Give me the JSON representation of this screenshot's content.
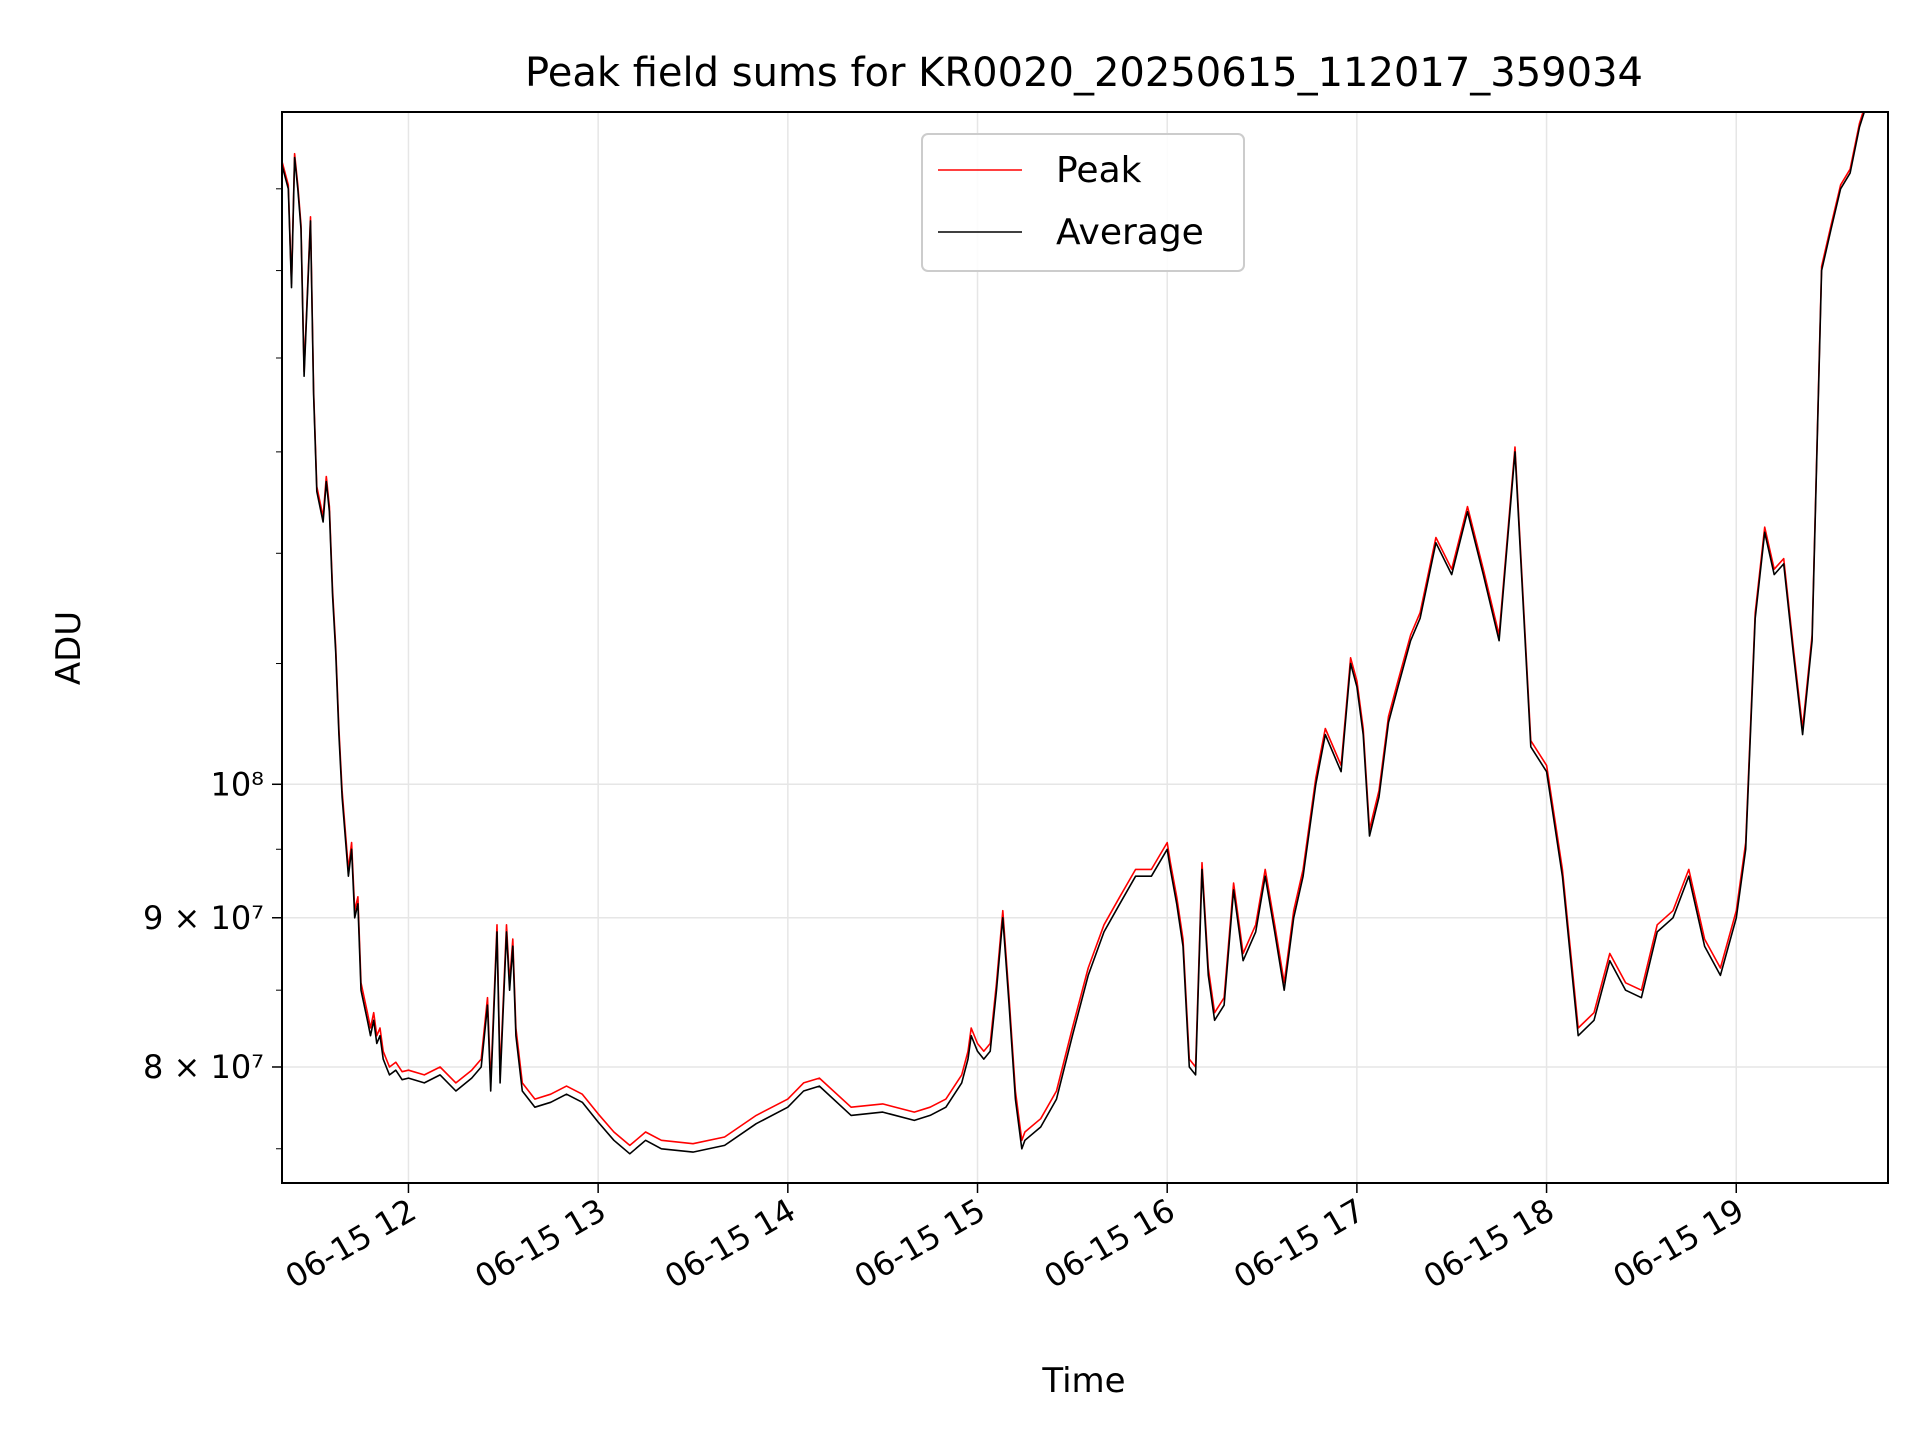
{
  "chart_data": {
    "type": "line",
    "title": "Peak field sums for KR0020_20250615_112017_359034",
    "xlabel": "Time",
    "ylabel": "ADU",
    "y_scale": "log",
    "grid": true,
    "legend_position": "top-center",
    "xlim": [
      "2025-06-15 11:20",
      "2025-06-15 19:48"
    ],
    "ylim": [
      73000000,
      170000000
    ],
    "x_ticks": [
      {
        "value": "2025-06-15 12:00",
        "label": "06-15 12"
      },
      {
        "value": "2025-06-15 13:00",
        "label": "06-15 13"
      },
      {
        "value": "2025-06-15 14:00",
        "label": "06-15 14"
      },
      {
        "value": "2025-06-15 15:00",
        "label": "06-15 15"
      },
      {
        "value": "2025-06-15 16:00",
        "label": "06-15 16"
      },
      {
        "value": "2025-06-15 17:00",
        "label": "06-15 17"
      },
      {
        "value": "2025-06-15 18:00",
        "label": "06-15 18"
      },
      {
        "value": "2025-06-15 19:00",
        "label": "06-15 19"
      }
    ],
    "y_ticks": [
      {
        "value": 80000000,
        "label": "8 × 10⁷"
      },
      {
        "value": 90000000,
        "label": "9 × 10⁷"
      },
      {
        "value": 100000000,
        "label": "10⁸"
      }
    ],
    "series": [
      {
        "name": "Peak",
        "color": "#ff0000"
      },
      {
        "name": "Average",
        "color": "#000000"
      }
    ],
    "x": [
      "2025-06-15 11:20",
      "2025-06-15 11:22",
      "2025-06-15 11:23",
      "2025-06-15 11:24",
      "2025-06-15 11:25",
      "2025-06-15 11:26",
      "2025-06-15 11:27",
      "2025-06-15 11:29",
      "2025-06-15 11:30",
      "2025-06-15 11:31",
      "2025-06-15 11:33",
      "2025-06-15 11:34",
      "2025-06-15 11:35",
      "2025-06-15 11:36",
      "2025-06-15 11:37",
      "2025-06-15 11:38",
      "2025-06-15 11:39",
      "2025-06-15 11:40",
      "2025-06-15 11:41",
      "2025-06-15 11:42",
      "2025-06-15 11:43",
      "2025-06-15 11:44",
      "2025-06-15 11:45",
      "2025-06-15 11:47",
      "2025-06-15 11:48",
      "2025-06-15 11:49",
      "2025-06-15 11:50",
      "2025-06-15 11:51",
      "2025-06-15 11:52",
      "2025-06-15 11:53",
      "2025-06-15 11:54",
      "2025-06-15 11:56",
      "2025-06-15 11:58",
      "2025-06-15 12:00",
      "2025-06-15 12:05",
      "2025-06-15 12:10",
      "2025-06-15 12:15",
      "2025-06-15 12:20",
      "2025-06-15 12:23",
      "2025-06-15 12:25",
      "2025-06-15 12:26",
      "2025-06-15 12:28",
      "2025-06-15 12:29",
      "2025-06-15 12:31",
      "2025-06-15 12:32",
      "2025-06-15 12:33",
      "2025-06-15 12:34",
      "2025-06-15 12:36",
      "2025-06-15 12:38",
      "2025-06-15 12:40",
      "2025-06-15 12:45",
      "2025-06-15 12:50",
      "2025-06-15 12:55",
      "2025-06-15 13:00",
      "2025-06-15 13:05",
      "2025-06-15 13:10",
      "2025-06-15 13:15",
      "2025-06-15 13:20",
      "2025-06-15 13:30",
      "2025-06-15 13:40",
      "2025-06-15 13:50",
      "2025-06-15 14:00",
      "2025-06-15 14:05",
      "2025-06-15 14:10",
      "2025-06-15 14:20",
      "2025-06-15 14:30",
      "2025-06-15 14:40",
      "2025-06-15 14:45",
      "2025-06-15 14:50",
      "2025-06-15 14:55",
      "2025-06-15 14:57",
      "2025-06-15 14:58",
      "2025-06-15 15:00",
      "2025-06-15 15:02",
      "2025-06-15 15:04",
      "2025-06-15 15:06",
      "2025-06-15 15:08",
      "2025-06-15 15:10",
      "2025-06-15 15:12",
      "2025-06-15 15:14",
      "2025-06-15 15:15",
      "2025-06-15 15:20",
      "2025-06-15 15:25",
      "2025-06-15 15:30",
      "2025-06-15 15:35",
      "2025-06-15 15:40",
      "2025-06-15 15:45",
      "2025-06-15 15:50",
      "2025-06-15 15:55",
      "2025-06-15 16:00",
      "2025-06-15 16:01",
      "2025-06-15 16:03",
      "2025-06-15 16:05",
      "2025-06-15 16:07",
      "2025-06-15 16:09",
      "2025-06-15 16:11",
      "2025-06-15 16:13",
      "2025-06-15 16:15",
      "2025-06-15 16:18",
      "2025-06-15 16:21",
      "2025-06-15 16:24",
      "2025-06-15 16:28",
      "2025-06-15 16:31",
      "2025-06-15 16:34",
      "2025-06-15 16:37",
      "2025-06-15 16:40",
      "2025-06-15 16:43",
      "2025-06-15 16:47",
      "2025-06-15 16:50",
      "2025-06-15 16:55",
      "2025-06-15 16:58",
      "2025-06-15 17:00",
      "2025-06-15 17:02",
      "2025-06-15 17:04",
      "2025-06-15 17:07",
      "2025-06-15 17:10",
      "2025-06-15 17:13",
      "2025-06-15 17:17",
      "2025-06-15 17:20",
      "2025-06-15 17:25",
      "2025-06-15 17:30",
      "2025-06-15 17:35",
      "2025-06-15 17:40",
      "2025-06-15 17:45",
      "2025-06-15 17:50",
      "2025-06-15 17:55",
      "2025-06-15 18:00",
      "2025-06-15 18:05",
      "2025-06-15 18:10",
      "2025-06-15 18:15",
      "2025-06-15 18:20",
      "2025-06-15 18:25",
      "2025-06-15 18:30",
      "2025-06-15 18:35",
      "2025-06-15 18:40",
      "2025-06-15 18:45",
      "2025-06-15 18:50",
      "2025-06-15 18:55",
      "2025-06-15 19:00",
      "2025-06-15 19:03",
      "2025-06-15 19:06",
      "2025-06-15 19:09",
      "2025-06-15 19:12",
      "2025-06-15 19:15",
      "2025-06-15 19:18",
      "2025-06-15 19:21",
      "2025-06-15 19:24",
      "2025-06-15 19:27",
      "2025-06-15 19:30",
      "2025-06-15 19:33",
      "2025-06-15 19:36",
      "2025-06-15 19:39",
      "2025-06-15 19:42",
      "2025-06-15 19:45",
      "2025-06-15 19:48"
    ],
    "average": [
      163000000,
      160000000,
      148000000,
      164000000,
      160000000,
      155000000,
      138000000,
      156000000,
      136000000,
      126000000,
      123000000,
      127000000,
      124000000,
      116000000,
      111000000,
      104000000,
      99000000,
      96000000,
      93000000,
      95000000,
      90000000,
      91000000,
      85000000,
      83000000,
      82000000,
      83000000,
      81500000,
      82000000,
      80500000,
      80000000,
      79500000,
      79800000,
      79200000,
      79300000,
      79000000,
      79500000,
      78500000,
      79300000,
      80000000,
      84000000,
      78500000,
      89000000,
      79000000,
      89000000,
      85000000,
      88000000,
      82000000,
      78500000,
      78000000,
      77500000,
      77800000,
      78300000,
      77800000,
      76600000,
      75500000,
      74700000,
      75500000,
      75000000,
      74800000,
      75200000,
      76500000,
      77500000,
      78500000,
      78800000,
      77000000,
      77200000,
      76700000,
      77000000,
      77500000,
      79000000,
      80500000,
      82000000,
      81000000,
      80500000,
      81000000,
      85000000,
      90000000,
      84000000,
      78000000,
      75000000,
      75500000,
      76300000,
      78000000,
      82000000,
      86000000,
      89000000,
      91000000,
      93000000,
      93000000,
      95000000,
      93500000,
      91000000,
      88000000,
      80000000,
      79500000,
      93500000,
      86000000,
      83000000,
      84000000,
      92000000,
      87000000,
      89000000,
      93000000,
      89000000,
      85000000,
      90000000,
      93000000,
      100000000,
      104000000,
      101000000,
      110000000,
      108000000,
      104000000,
      96000000,
      99000000,
      105000000,
      108000000,
      112000000,
      114000000,
      121000000,
      118000000,
      124000000,
      118000000,
      112000000,
      130000000,
      103000000,
      101000000,
      93000000,
      82000000,
      83000000,
      87000000,
      85000000,
      84500000,
      89000000,
      90000000,
      93000000,
      88000000,
      86000000,
      90000000,
      95000000,
      114000000,
      122000000,
      118000000,
      119000000,
      111000000,
      104000000,
      112000000,
      150000000,
      155000000,
      160000000,
      162000000,
      168000000,
      172000000
    ],
    "peak": [
      163500000,
      160500000,
      148500000,
      164500000,
      160500000,
      155500000,
      138500000,
      156500000,
      136500000,
      126500000,
      123500000,
      127500000,
      124500000,
      116500000,
      111500000,
      104500000,
      99500000,
      96500000,
      93500000,
      95500000,
      90500000,
      91500000,
      85500000,
      83500000,
      82500000,
      83500000,
      82000000,
      82500000,
      81000000,
      80500000,
      80000000,
      80300000,
      79700000,
      79800000,
      79500000,
      80000000,
      79000000,
      79800000,
      80500000,
      84500000,
      79000000,
      89500000,
      79500000,
      89500000,
      85500000,
      88500000,
      82500000,
      79000000,
      78500000,
      78000000,
      78300000,
      78800000,
      78300000,
      77100000,
      76000000,
      75200000,
      76000000,
      75500000,
      75300000,
      75700000,
      77000000,
      78000000,
      79000000,
      79300000,
      77500000,
      77700000,
      77200000,
      77500000,
      78000000,
      79500000,
      81000000,
      82500000,
      81500000,
      81000000,
      81500000,
      85500000,
      90500000,
      84500000,
      78500000,
      75500000,
      76000000,
      76800000,
      78500000,
      82500000,
      86500000,
      89500000,
      91500000,
      93500000,
      93500000,
      95500000,
      94000000,
      91500000,
      88500000,
      80500000,
      80000000,
      94000000,
      86500000,
      83500000,
      84500000,
      92500000,
      87500000,
      89500000,
      93500000,
      89500000,
      85500000,
      90500000,
      93500000,
      100500000,
      104500000,
      101500000,
      110500000,
      108500000,
      104500000,
      96500000,
      99500000,
      105500000,
      108500000,
      112500000,
      114500000,
      121500000,
      118500000,
      124500000,
      118500000,
      112500000,
      130500000,
      103500000,
      101500000,
      93500000,
      82500000,
      83500000,
      87500000,
      85500000,
      85000000,
      89500000,
      90500000,
      93500000,
      88500000,
      86500000,
      90500000,
      95500000,
      114500000,
      122500000,
      118500000,
      119500000,
      111500000,
      104500000,
      112500000,
      150500000,
      155500000,
      160500000,
      162500000,
      168500000,
      172500000
    ]
  }
}
